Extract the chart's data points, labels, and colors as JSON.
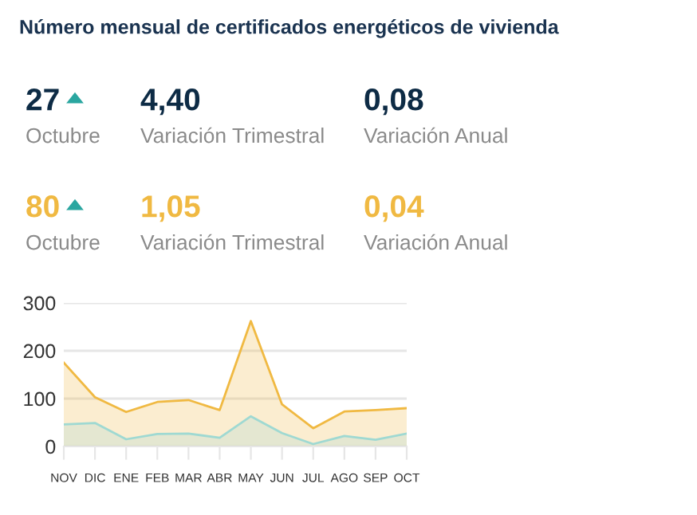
{
  "chart_data": {
    "type": "area",
    "title": "Número mensual de certificados energéticos de vivienda",
    "categories": [
      "NOV",
      "DIC",
      "ENE",
      "FEB",
      "MAR",
      "ABR",
      "MAY",
      "JUN",
      "JUL",
      "AGO",
      "SEP",
      "OCT"
    ],
    "series": [
      {
        "color": "#f0b942",
        "values": [
          175,
          103,
          72,
          93,
          97,
          76,
          262,
          88,
          38,
          73,
          76,
          80
        ]
      },
      {
        "color": "#9fd9d2",
        "values": [
          46,
          49,
          15,
          26,
          27,
          18,
          63,
          28,
          5,
          22,
          14,
          27
        ]
      }
    ],
    "ylim": [
      0,
      300
    ],
    "yticks": [
      0,
      100,
      200,
      300
    ],
    "grid": "y",
    "annotations": [
      "27",
      "Octubre",
      "4,40",
      "Variación Trimestral",
      "0,08",
      "Variación Anual",
      "80",
      "Octubre",
      "1,05",
      "Variación Trimestral",
      "0,04",
      "Variación Anual"
    ]
  }
}
